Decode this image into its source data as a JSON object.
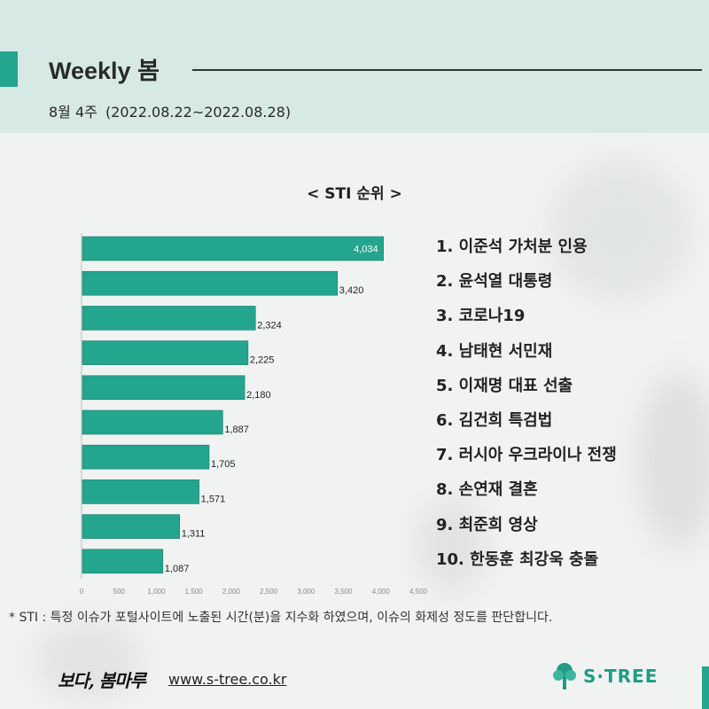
{
  "header": {
    "title": "Weekly 봄",
    "week": "8월 4주",
    "range": "(2022.08.22~2022.08.28)"
  },
  "chart_title": "< STI 순위 >",
  "chart_data": {
    "type": "bar",
    "orientation": "horizontal",
    "categories": [
      "1. 이준석 가처분 인용",
      "2. 윤석열 대통령",
      "3. 코로나19",
      "4. 남태현 서민재",
      "5. 이재명 대표 선출",
      "6. 김건희 특검법",
      "7. 러시아 우크라이나 전쟁",
      "8. 손연재 결혼",
      "9. 최준희 영상",
      "10. 한동훈 최강욱 충돌"
    ],
    "values": [
      4034,
      3420,
      2324,
      2225,
      2180,
      1887,
      1705,
      1571,
      1311,
      1087
    ],
    "value_labels": [
      "4,034",
      "3,420",
      "2,324",
      "2,225",
      "2,180",
      "1,887",
      "1,705",
      "1,571",
      "1,311",
      "1,087"
    ],
    "xlim": [
      0,
      4500
    ],
    "x_ticks": [
      "0",
      "500",
      "1,000",
      "1,500",
      "2,000",
      "2,500",
      "3,000",
      "3,500",
      "4,000",
      "4,500"
    ],
    "grid": false,
    "bar_color": "#23a58e"
  },
  "footnote": "* STI : 특정 이슈가 포털사이트에 노출된 시간(분)을 지수화 하였으며, 이슈의 화제성 정도를 판단합니다.",
  "footer": {
    "logo_text": "보다, 봄마루",
    "url": "www.s-tree.co.kr",
    "brand": "S·TREE"
  },
  "colors": {
    "accent": "#23a58e",
    "header_bg": "#d6e9e4"
  }
}
